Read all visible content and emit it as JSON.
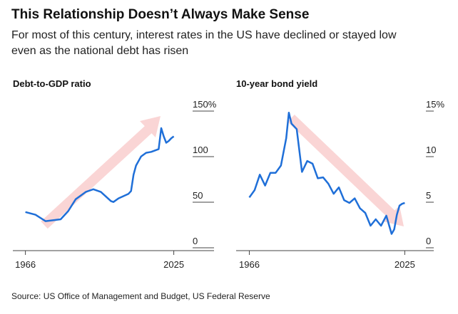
{
  "title": "This Relationship Doesn’t Always Make Sense",
  "subtitle_lines": [
    "For most of this century, interest rates in the US have declined or stayed low",
    "even as the national debt has risen"
  ],
  "source": "Source: US Office of Management and Budget, US Federal Reserve",
  "chart_data": [
    {
      "type": "line",
      "title": "Debt-to-GDP ratio",
      "x": [
        1966,
        1970,
        1974,
        1980,
        1983,
        1986,
        1990,
        1993,
        1996,
        2000,
        2001,
        2003,
        2007,
        2008,
        2009,
        2010,
        2012,
        2014,
        2016,
        2019,
        2020,
        2021,
        2022,
        2023,
        2024,
        2025
      ],
      "series": [
        {
          "name": "Debt-to-GDP ratio",
          "color": "#1f6fd8",
          "values": [
            33,
            30,
            23,
            25,
            34,
            47,
            55,
            58,
            55,
            45,
            44,
            48,
            53,
            56,
            74,
            84,
            94,
            98,
            99,
            102,
            125,
            116,
            109,
            111,
            114,
            116
          ]
        }
      ],
      "xlim": [
        1961,
        2041
      ],
      "xticks": [
        1966,
        2025
      ],
      "ylim": [
        0,
        150
      ],
      "yticks": [
        0,
        50,
        100,
        {
          "value": 150,
          "label": "150%"
        }
      ]
    },
    {
      "type": "line",
      "title": "10-year bond yield",
      "x": [
        1966,
        1968,
        1970,
        1972,
        1974,
        1976,
        1978,
        1980,
        1981,
        1982,
        1984,
        1986,
        1988,
        1990,
        1992,
        1994,
        1996,
        1998,
        2000,
        2002,
        2004,
        2006,
        2008,
        2010,
        2012,
        2014,
        2016,
        2018,
        2020,
        2021,
        2022,
        2023,
        2024,
        2025
      ],
      "series": [
        {
          "name": "10-year bond yield",
          "color": "#1f6fd8",
          "values": [
            4.9,
            5.7,
            7.4,
            6.2,
            7.6,
            7.6,
            8.4,
            11.4,
            14.2,
            13.0,
            12.4,
            7.7,
            8.9,
            8.6,
            7.0,
            7.1,
            6.4,
            5.3,
            6.0,
            4.6,
            4.3,
            4.8,
            3.7,
            3.2,
            1.8,
            2.5,
            1.8,
            2.9,
            0.9,
            1.4,
            3.0,
            4.0,
            4.2,
            4.3
          ]
        }
      ],
      "xlim": [
        1961,
        2036
      ],
      "xticks": [
        1966,
        2025
      ],
      "ylim": [
        0,
        15
      ],
      "yticks": [
        0,
        5,
        10,
        {
          "value": 15,
          "label": "15%"
        }
      ]
    }
  ]
}
